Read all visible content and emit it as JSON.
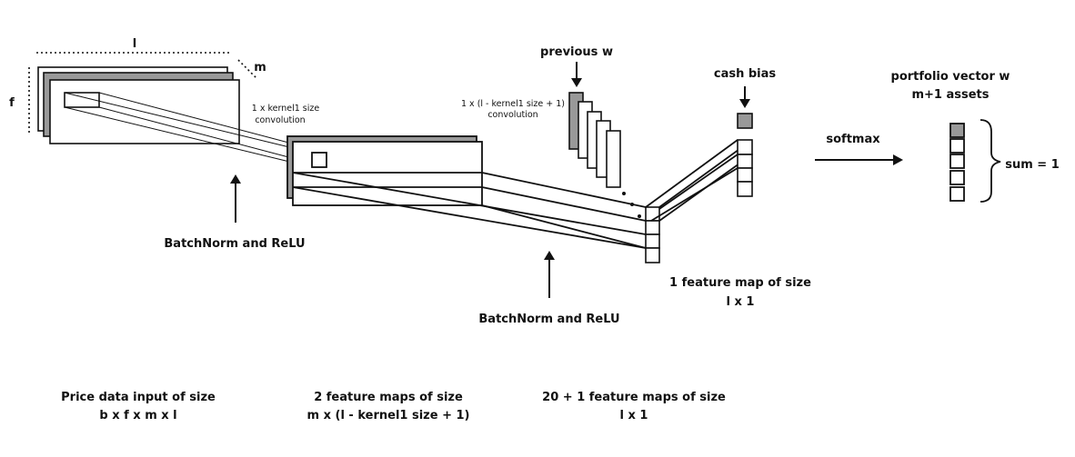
{
  "diagram": {
    "dimension_labels": {
      "length": "l",
      "depth": "m",
      "height": "f"
    },
    "conv1_label": [
      "1 x kernel1 size",
      "convolution"
    ],
    "conv2_label": [
      "1 x (l - kernel1 size + 1)",
      "convolution"
    ],
    "batchnorm_1": "BatchNorm and ReLU",
    "batchnorm_2": "BatchNorm and ReLU",
    "previous_w": "previous w",
    "cash_bias": "cash bias",
    "portfolio_label": [
      "portfolio vector w",
      "m+1 assets"
    ],
    "softmax": "softmax",
    "sum_label": "sum = 1",
    "feature_map_label": [
      "1 feature map of size",
      "l x 1"
    ],
    "captions": [
      {
        "line1": "Price data input of size",
        "line2": "b x f x m x l"
      },
      {
        "line1": "2 feature maps of size",
        "line2": "m x (l - kernel1 size + 1)"
      },
      {
        "line1": "20 + 1 feature maps of size",
        "line2": "l x 1"
      }
    ],
    "colors": {
      "stroke": "#111111",
      "fill_gray": "#999999",
      "fill_white": "#ffffff"
    }
  }
}
